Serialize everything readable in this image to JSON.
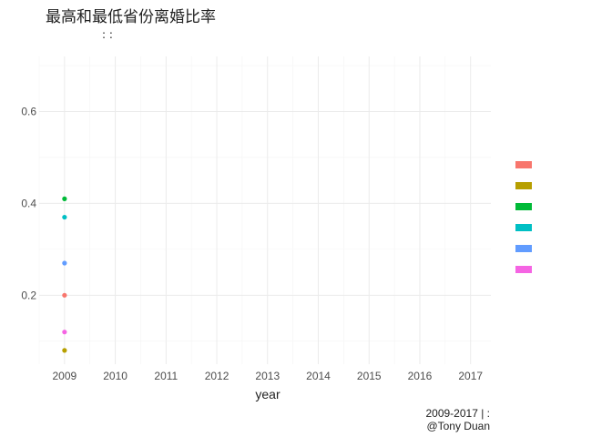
{
  "chart_data": {
    "type": "scatter",
    "title": "最高和最低省份离婚比率",
    "subtitle": ": :",
    "xlabel": "year",
    "ylabel": "",
    "caption_source": "2009-2017 | :",
    "caption_author": "@Tony Duan",
    "x_ticks": [
      "2009",
      "2010",
      "2011",
      "2012",
      "2013",
      "2014",
      "2015",
      "2016",
      "2017"
    ],
    "y_ticks": [
      "0.2",
      "0.4",
      "0.6"
    ],
    "xlim": [
      2008.5,
      2017.4
    ],
    "ylim": [
      0.05,
      0.72
    ],
    "grid": true,
    "legend_position": "right",
    "series": [
      {
        "color": "#f8766d",
        "points": [
          {
            "x": 2009,
            "y": 0.2
          }
        ]
      },
      {
        "color": "#b79f00",
        "points": [
          {
            "x": 2009,
            "y": 0.08
          }
        ]
      },
      {
        "color": "#00ba38",
        "points": [
          {
            "x": 2009,
            "y": 0.41
          }
        ]
      },
      {
        "color": "#00bfc4",
        "points": [
          {
            "x": 2009,
            "y": 0.37
          }
        ]
      },
      {
        "color": "#619cff",
        "points": [
          {
            "x": 2009,
            "y": 0.27
          }
        ]
      },
      {
        "color": "#f564e3",
        "points": [
          {
            "x": 2009,
            "y": 0.12
          }
        ]
      }
    ]
  }
}
